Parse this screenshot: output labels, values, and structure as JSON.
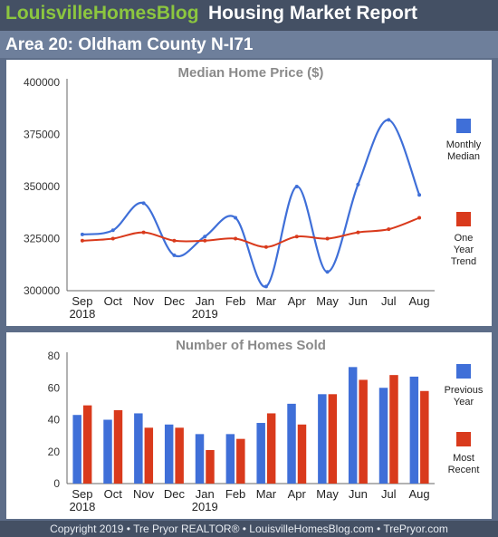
{
  "header": {
    "brand_part1": "Louisville",
    "brand_part2": "Homes",
    "brand_part3": "Blog",
    "report_title": "Housing Market Report",
    "area_title": "Area 20: Oldham County N-I71"
  },
  "footer": {
    "text": "Copyright 2019 • Tre Pryor REALTOR® • LouisvilleHomesBlog.com • TrePryor.com"
  },
  "colors": {
    "blue": "#3f6fd8",
    "red": "#d93a1c",
    "brand_green": "#8cc63f"
  },
  "chart_data": [
    {
      "type": "line",
      "title": "Median Home Price ($)",
      "categories": [
        "Sep",
        "Oct",
        "Nov",
        "Dec",
        "Jan",
        "Feb",
        "Mar",
        "Apr",
        "May",
        "Jun",
        "Jul",
        "Aug"
      ],
      "category_sublabels": [
        "2018",
        "",
        "",
        "",
        "2019",
        "",
        "",
        "",
        "",
        "",
        "",
        ""
      ],
      "ylim": [
        300000,
        400000
      ],
      "yticks": [
        "300000",
        "325000",
        "350000",
        "375000",
        "400000"
      ],
      "series": [
        {
          "name": "Monthly Median",
          "legend_lines": [
            "Monthly",
            "Median"
          ],
          "color": "#3f6fd8",
          "values": [
            327000,
            329000,
            342000,
            317000,
            326000,
            335000,
            302000,
            350000,
            309000,
            351000,
            382000,
            346000
          ]
        },
        {
          "name": "One Year Trend",
          "legend_lines": [
            "One",
            "Year",
            "Trend"
          ],
          "color": "#d93a1c",
          "values": [
            324000,
            325000,
            328000,
            324000,
            324000,
            325000,
            321000,
            326000,
            325000,
            328000,
            329500,
            335000
          ]
        }
      ],
      "legend_position": "right",
      "grid": false
    },
    {
      "type": "bar",
      "title": "Number of Homes Sold",
      "categories": [
        "Sep",
        "Oct",
        "Nov",
        "Dec",
        "Jan",
        "Feb",
        "Mar",
        "Apr",
        "May",
        "Jun",
        "Jul",
        "Aug"
      ],
      "category_sublabels": [
        "2018",
        "",
        "",
        "",
        "2019",
        "",
        "",
        "",
        "",
        "",
        "",
        ""
      ],
      "ylim": [
        0,
        80
      ],
      "yticks": [
        "0",
        "20",
        "40",
        "60",
        "80"
      ],
      "series": [
        {
          "name": "Previous Year",
          "legend_lines": [
            "Previous",
            "Year"
          ],
          "color": "#3f6fd8",
          "values": [
            43,
            40,
            44,
            37,
            31,
            31,
            38,
            50,
            56,
            73,
            60,
            67
          ]
        },
        {
          "name": "Most Recent",
          "legend_lines": [
            "Most",
            "Recent"
          ],
          "color": "#d93a1c",
          "values": [
            49,
            46,
            35,
            35,
            21,
            28,
            44,
            37,
            56,
            65,
            68,
            58
          ]
        }
      ],
      "legend_position": "right",
      "grid": false
    }
  ]
}
